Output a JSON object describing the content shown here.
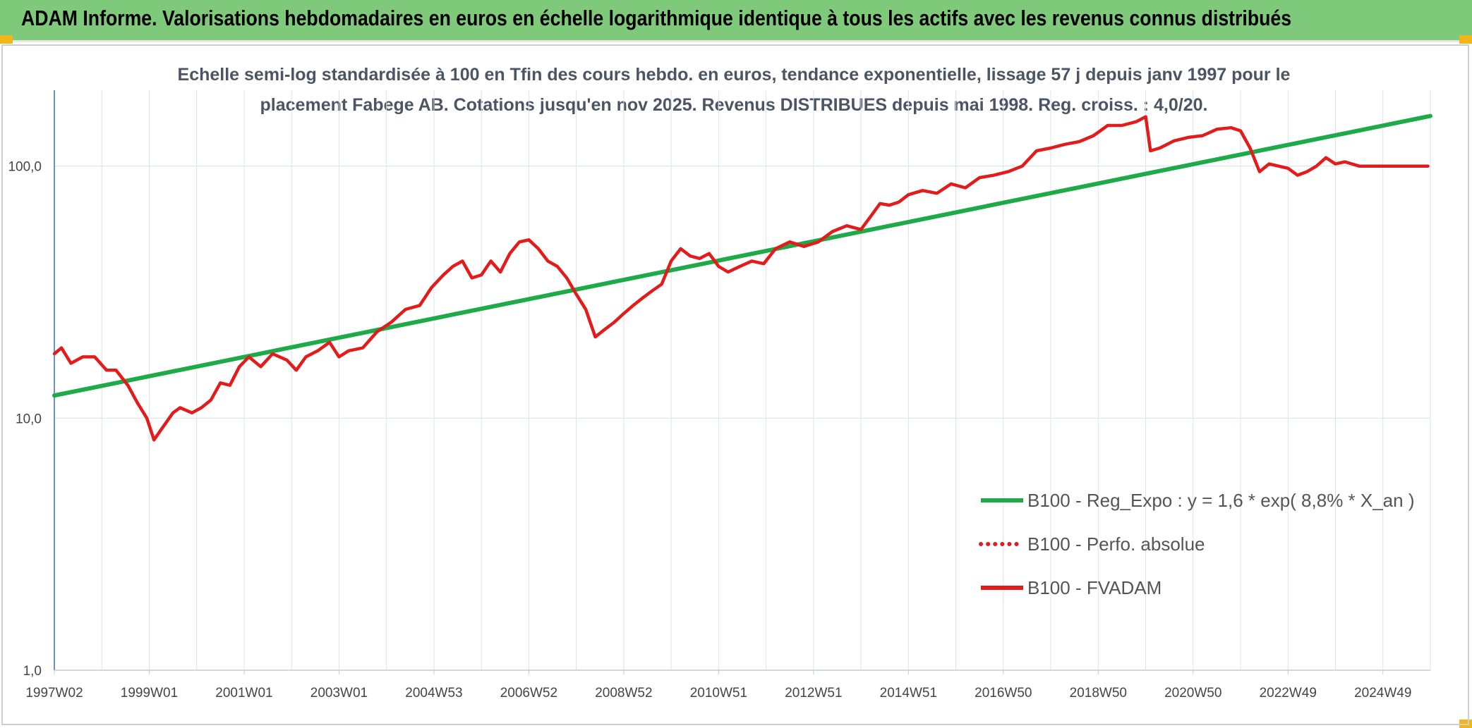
{
  "banner": {
    "title": "ADAM Informe. Valorisations hebdomadaires en euros en échelle logarithmique identique à tous les actifs avec les revenus connus distribués"
  },
  "chart_data": {
    "type": "line",
    "title_line1": "Echelle semi-log standardisée à 100 en Tfin des cours hebdo. en euros, tendance exponentielle, lissage 57 j depuis janv 1997 pour le",
    "title_line2": "placement Fabege AB. Cotations jusqu'en nov 2025. Revenus DISTRIBUES depuis mai 1998. Reg. croiss. : 4,0/20.",
    "yscale": "log",
    "ylim": [
      1,
      200
    ],
    "xlim": [
      1997.0,
      2026.0
    ],
    "y_ticks": [
      1,
      10,
      100
    ],
    "y_tick_labels": [
      "1,0",
      "10,0",
      "100,0"
    ],
    "x_tick_positions": [
      1997.0,
      1999.0,
      2001.0,
      2003.0,
      2005.0,
      2007.0,
      2009.0,
      2011.0,
      2013.0,
      2015.0,
      2017.0,
      2019.0,
      2021.0,
      2023.0,
      2025.0
    ],
    "x_tick_labels": [
      "1997W02",
      "1999W01",
      "2001W01",
      "2003W01",
      "2004W53",
      "2006W52",
      "2008W52",
      "2010W51",
      "2012W51",
      "2014W51",
      "2016W50",
      "2018W50",
      "2020W50",
      "2022W49",
      "2024W49"
    ],
    "grid": true,
    "legend_position": "bottom-right",
    "series": [
      {
        "name": "B100 - Reg_Expo : y = 1,6 * exp( 8,8% *  X_an )",
        "color": "#1faa4a",
        "style": "solid",
        "x": [
          1997.0,
          2026.0
        ],
        "y": [
          12.3,
          158
        ]
      },
      {
        "name": "B100 - Perfo. absolue",
        "color": "#e31b1b",
        "style": "dotted",
        "x": [],
        "y": []
      },
      {
        "name": "B100 - FVADAM",
        "color": "#e31b1b",
        "style": "solid",
        "x": [
          1997.0,
          1997.15,
          1997.35,
          1997.6,
          1997.85,
          1998.1,
          1998.3,
          1998.55,
          1998.75,
          1998.95,
          1999.1,
          1999.25,
          1999.5,
          1999.65,
          1999.9,
          2000.1,
          2000.3,
          2000.5,
          2000.7,
          2000.9,
          2001.1,
          2001.35,
          2001.6,
          2001.9,
          2002.1,
          2002.3,
          2002.55,
          2002.8,
          2003.0,
          2003.2,
          2003.5,
          2003.8,
          2004.1,
          2004.4,
          2004.7,
          2004.95,
          2005.2,
          2005.4,
          2005.6,
          2005.8,
          2006.0,
          2006.2,
          2006.4,
          2006.6,
          2006.8,
          2007.0,
          2007.2,
          2007.4,
          2007.6,
          2007.8,
          2008.0,
          2008.2,
          2008.4,
          2008.6,
          2008.8,
          2009.0,
          2009.2,
          2009.4,
          2009.6,
          2009.8,
          2010.0,
          2010.2,
          2010.4,
          2010.6,
          2010.8,
          2011.0,
          2011.2,
          2011.45,
          2011.7,
          2011.95,
          2012.2,
          2012.5,
          2012.8,
          2013.1,
          2013.4,
          2013.7,
          2014.0,
          2014.2,
          2014.4,
          2014.6,
          2014.8,
          2015.0,
          2015.3,
          2015.6,
          2015.9,
          2016.2,
          2016.5,
          2016.8,
          2017.1,
          2017.4,
          2017.7,
          2018.0,
          2018.3,
          2018.6,
          2018.9,
          2019.2,
          2019.5,
          2019.8,
          2020.0,
          2020.1,
          2020.3,
          2020.6,
          2020.9,
          2021.2,
          2021.5,
          2021.8,
          2022.0,
          2022.2,
          2022.4,
          2022.6,
          2022.8,
          2023.0,
          2023.2,
          2023.4,
          2023.6,
          2023.8,
          2024.0,
          2024.2,
          2024.5,
          2024.8,
          2025.1,
          2025.4,
          2025.7,
          2025.95
        ],
        "y": [
          18,
          19,
          16.5,
          17.5,
          17.5,
          15.5,
          15.5,
          13.5,
          11.5,
          10,
          8.2,
          9,
          10.5,
          11,
          10.5,
          11,
          11.8,
          13.8,
          13.5,
          16,
          17.5,
          16,
          18,
          17,
          15.5,
          17.5,
          18.5,
          20,
          17.5,
          18.5,
          19,
          22,
          24,
          27,
          28,
          33,
          37,
          40,
          42,
          36,
          37,
          42,
          38,
          45,
          50,
          51,
          47,
          42,
          40,
          36,
          31,
          27,
          21,
          22.5,
          24,
          26,
          28,
          30,
          32,
          34,
          42,
          47,
          44,
          43,
          45,
          40,
          38,
          40,
          42,
          41,
          47,
          50,
          48,
          50,
          55,
          58,
          56,
          63,
          71,
          70,
          72,
          77,
          80,
          78,
          85,
          82,
          90,
          92,
          95,
          100,
          115,
          118,
          122,
          125,
          132,
          145,
          145,
          150,
          157,
          115,
          118,
          126,
          130,
          132,
          140,
          142,
          138,
          118,
          95,
          102,
          100,
          98,
          92,
          95,
          100,
          108,
          102,
          104,
          100,
          100,
          100,
          100,
          100,
          100
        ]
      }
    ]
  }
}
